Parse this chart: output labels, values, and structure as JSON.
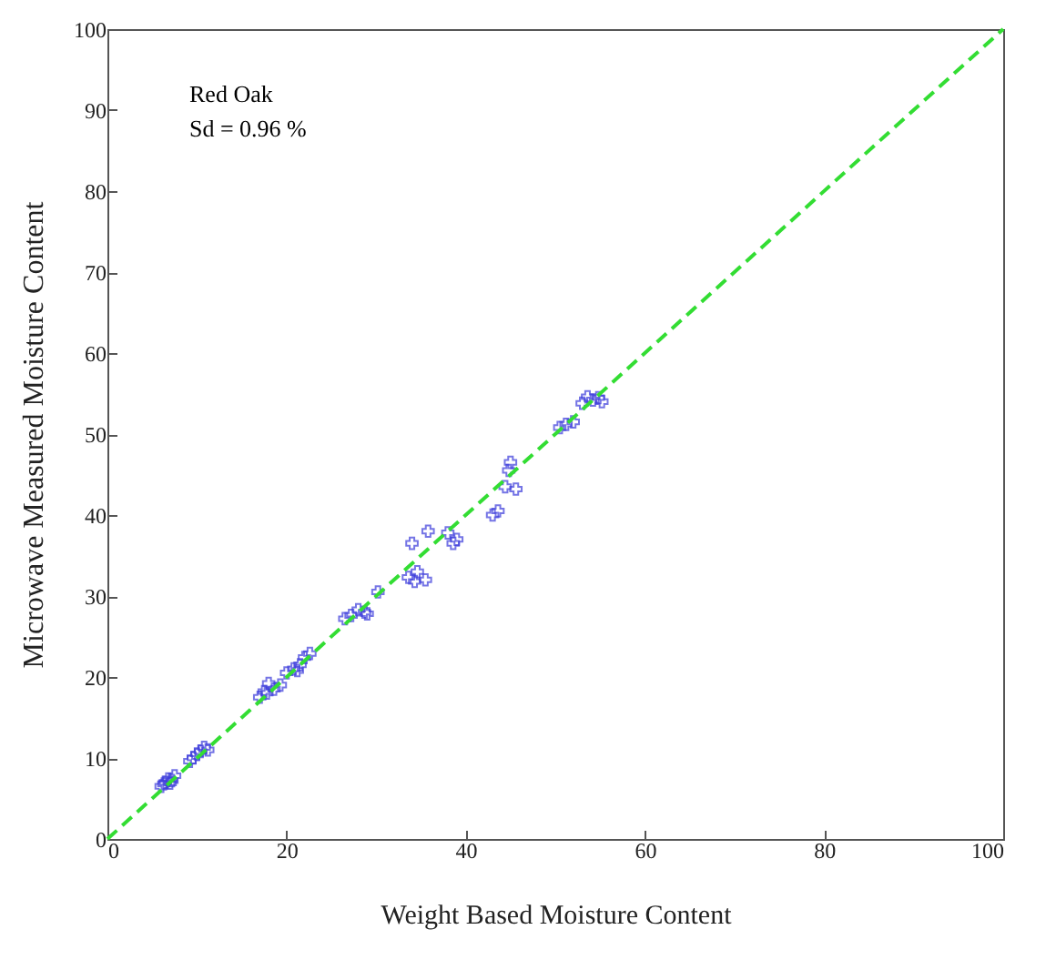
{
  "chart_data": {
    "type": "scatter",
    "xlabel": "Weight Based Moisture Content",
    "ylabel": "Microwave Measured  Moisture Content",
    "annotations": [
      {
        "text": "Red Oak\nSd = 0.96 %"
      }
    ],
    "xlim": [
      0,
      100
    ],
    "ylim": [
      0,
      100
    ],
    "xticks": [
      0,
      20,
      40,
      60,
      80,
      100
    ],
    "yticks": [
      0,
      10,
      20,
      30,
      40,
      50,
      60,
      70,
      80,
      90,
      100
    ],
    "grid": false,
    "series": [
      {
        "type": "scatter",
        "color": "#3b3bdb",
        "marker": "cross",
        "x": [
          6,
          6.5,
          6.8,
          7.2,
          7.5,
          6.3,
          7,
          9.6,
          10,
          10.4,
          10.8,
          11.2,
          9.2,
          17,
          17.5,
          18,
          18.6,
          19.3,
          17.8,
          20,
          20.8,
          21.5,
          22,
          22.6,
          21.2,
          26.5,
          27.2,
          28,
          28.7,
          29,
          30.2,
          33.6,
          34,
          34.6,
          35.5,
          35.8,
          34.3,
          38,
          38.6,
          39,
          43,
          43.6,
          44.4,
          45,
          45.6,
          44.8,
          50.5,
          51.2,
          52,
          53,
          53.6,
          54.2,
          54.8,
          55.2
        ],
        "values": [
          6.5,
          7,
          7.4,
          7.2,
          7.8,
          6.8,
          6.9,
          10,
          10.5,
          10.8,
          11.3,
          11,
          9.6,
          17.5,
          18.2,
          19.2,
          18.5,
          19,
          18,
          20.5,
          21,
          21.5,
          22.4,
          22.9,
          20.8,
          27.2,
          27.6,
          28.3,
          28,
          27.8,
          30.5,
          32.3,
          36.5,
          33,
          32,
          38,
          31.8,
          37.8,
          36.5,
          37,
          40,
          40.5,
          43.5,
          46.5,
          43.2,
          45.5,
          50.8,
          51.2,
          51.5,
          53.8,
          54.6,
          54.2,
          54.5,
          54
        ]
      },
      {
        "type": "line",
        "color": "#33dd33",
        "line_style": "dashed",
        "marker": "none",
        "x": [
          0,
          100
        ],
        "values": [
          0,
          100
        ]
      }
    ]
  }
}
